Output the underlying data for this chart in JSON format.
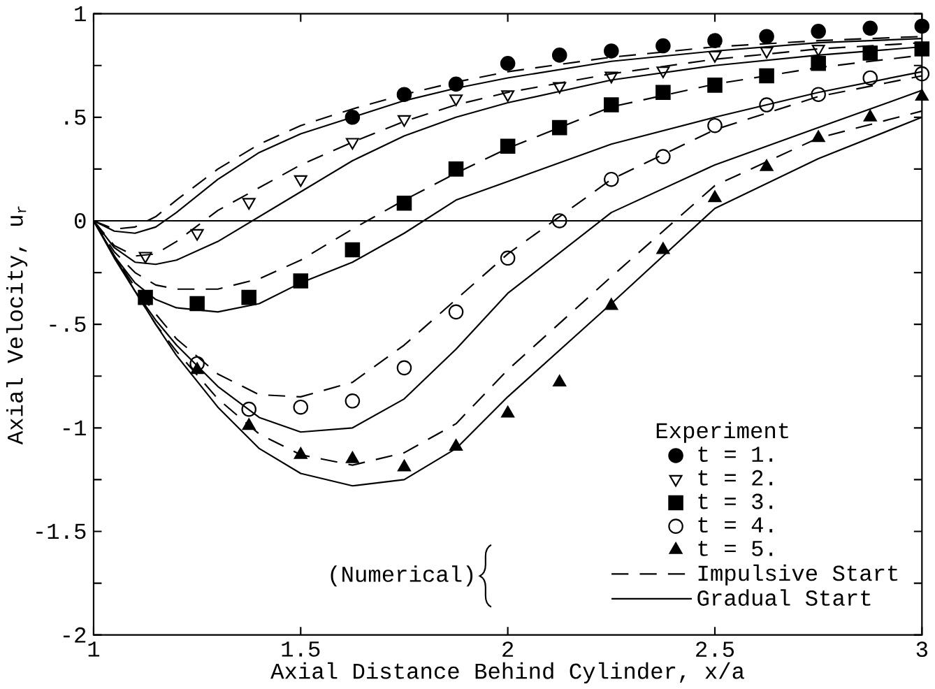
{
  "chart_data": {
    "type": "line",
    "xlabel": "Axial Distance Behind Cylinder, x/a",
    "ylabel": "Axial Velocity, u$_{r}$",
    "legend_title": "Experiment",
    "annotations": [
      "(Numerical)"
    ],
    "xlim": [
      1,
      3
    ],
    "ylim": [
      -2,
      1
    ],
    "xticks": [
      1,
      1.5,
      2,
      2.5,
      3
    ],
    "yticks": [
      -2,
      {
        "value": -1.75,
        "label": null
      },
      {
        "value": -1.5,
        "label": "-1.5"
      },
      {
        "value": -1.25,
        "label": null
      },
      -1,
      {
        "value": -0.75,
        "label": null
      },
      {
        "value": -0.5,
        "label": "-.5"
      },
      {
        "value": -0.25,
        "label": null
      },
      0,
      {
        "value": 0.25,
        "label": null
      },
      {
        "value": 0.5,
        "label": ".5"
      },
      {
        "value": 0.75,
        "label": null
      },
      1
    ],
    "ref_lines": [
      {
        "axis": "y",
        "value": 0,
        "color": "#000000"
      }
    ],
    "legend": "bottom right",
    "series": [
      {
        "type": "scatter",
        "name": "t = 1.",
        "color": "#000000",
        "marker": "circle",
        "x": [
          1.625,
          1.75,
          1.875,
          2.0,
          2.125,
          2.25,
          2.375,
          2.5,
          2.625,
          2.75,
          2.875,
          3.0
        ],
        "values": [
          0.5,
          0.61,
          0.66,
          0.76,
          0.8,
          0.82,
          0.845,
          0.87,
          0.89,
          0.915,
          0.93,
          0.94
        ]
      },
      {
        "type": "scatter",
        "name": "t = 2.",
        "color": "#000000",
        "marker": "triangle-down-open",
        "x": [
          1.125,
          1.25,
          1.375,
          1.5,
          1.625,
          1.75,
          1.875,
          2.0,
          2.125,
          2.25,
          2.375,
          2.5,
          2.625,
          2.75
        ],
        "values": [
          -0.17,
          -0.06,
          0.09,
          0.2,
          0.38,
          0.49,
          0.59,
          0.61,
          0.65,
          0.7,
          0.725,
          0.8,
          0.82,
          0.83
        ]
      },
      {
        "type": "scatter",
        "name": "t = 3.",
        "color": "#000000",
        "marker": "square",
        "x": [
          1.125,
          1.25,
          1.375,
          1.5,
          1.625,
          1.75,
          1.875,
          2.0,
          2.125,
          2.25,
          2.375,
          2.5,
          2.625,
          2.75,
          2.875,
          3.0
        ],
        "values": [
          -0.37,
          -0.4,
          -0.37,
          -0.29,
          -0.14,
          0.085,
          0.25,
          0.36,
          0.45,
          0.56,
          0.62,
          0.655,
          0.7,
          0.76,
          0.81,
          0.83
        ]
      },
      {
        "type": "scatter",
        "name": "t = 4.",
        "color": "#000000",
        "marker": "circle-open",
        "x": [
          1.25,
          1.375,
          1.5,
          1.625,
          1.75,
          1.875,
          2.0,
          2.125,
          2.25,
          2.375,
          2.5,
          2.625,
          2.75,
          2.875,
          3.0
        ],
        "values": [
          -0.69,
          -0.91,
          -0.9,
          -0.87,
          -0.71,
          -0.44,
          -0.18,
          0.0,
          0.2,
          0.31,
          0.46,
          0.56,
          0.61,
          0.69,
          0.71
        ]
      },
      {
        "type": "scatter",
        "name": "t = 5.",
        "color": "#000000",
        "marker": "triangle",
        "x": [
          1.25,
          1.375,
          1.5,
          1.625,
          1.75,
          1.875,
          2.0,
          2.125,
          2.25,
          2.375,
          2.5,
          2.625,
          2.75,
          2.875,
          3.0
        ],
        "values": [
          -0.72,
          -0.99,
          -1.13,
          -1.15,
          -1.19,
          -1.09,
          -0.93,
          -0.78,
          -0.41,
          -0.14,
          0.11,
          0.26,
          0.4,
          0.5,
          0.6
        ]
      },
      {
        "name": "Impulsive Start",
        "color": "#000000",
        "line_style": "dashed",
        "x": [
          1,
          1.05,
          1.1,
          1.15,
          1.2,
          1.3,
          1.4,
          1.5,
          1.625,
          1.75,
          1.875,
          2,
          2.25,
          2.5,
          2.75,
          3
        ],
        "values": [
          0,
          -0.04,
          -0.03,
          0.02,
          0.1,
          0.25,
          0.37,
          0.46,
          0.54,
          0.61,
          0.67,
          0.72,
          0.79,
          0.84,
          0.87,
          0.89
        ]
      },
      {
        "color": "#000000",
        "line_style": "dashed",
        "x": [
          1,
          1.05,
          1.1,
          1.15,
          1.2,
          1.3,
          1.4,
          1.5,
          1.625,
          1.75,
          1.875,
          2,
          2.25,
          2.5,
          2.75,
          3
        ],
        "values": [
          0,
          -0.12,
          -0.17,
          -0.16,
          -0.1,
          0.05,
          0.16,
          0.27,
          0.38,
          0.48,
          0.56,
          0.62,
          0.71,
          0.78,
          0.83,
          0.86
        ]
      },
      {
        "color": "#000000",
        "line_style": "dashed",
        "x": [
          1,
          1.05,
          1.1,
          1.15,
          1.2,
          1.3,
          1.4,
          1.5,
          1.625,
          1.75,
          1.875,
          2,
          2.25,
          2.5,
          2.75,
          3
        ],
        "values": [
          0,
          -0.15,
          -0.25,
          -0.31,
          -0.33,
          -0.33,
          -0.28,
          -0.19,
          -0.04,
          0.1,
          0.23,
          0.35,
          0.55,
          0.66,
          0.74,
          0.8
        ]
      },
      {
        "color": "#000000",
        "line_style": "dashed",
        "x": [
          1,
          1.05,
          1.1,
          1.15,
          1.2,
          1.3,
          1.4,
          1.5,
          1.625,
          1.75,
          1.875,
          2,
          2.25,
          2.5,
          2.75,
          3
        ],
        "values": [
          0,
          -0.17,
          -0.32,
          -0.45,
          -0.57,
          -0.74,
          -0.84,
          -0.85,
          -0.78,
          -0.6,
          -0.38,
          -0.16,
          0.2,
          0.44,
          0.6,
          0.7
        ]
      },
      {
        "color": "#000000",
        "line_style": "dashed",
        "x": [
          1,
          1.05,
          1.1,
          1.15,
          1.2,
          1.3,
          1.4,
          1.5,
          1.625,
          1.75,
          1.875,
          2,
          2.25,
          2.5,
          2.75,
          3
        ],
        "values": [
          0,
          -0.17,
          -0.34,
          -0.5,
          -0.63,
          -0.86,
          -1.03,
          -1.13,
          -1.18,
          -1.12,
          -0.98,
          -0.72,
          -0.27,
          0.17,
          0.4,
          0.53
        ]
      },
      {
        "name": "Gradual Start",
        "color": "#000000",
        "line_style": "solid",
        "x": [
          1,
          1.05,
          1.1,
          1.15,
          1.2,
          1.3,
          1.4,
          1.5,
          1.625,
          1.75,
          1.875,
          2,
          2.25,
          2.5,
          2.75,
          3
        ],
        "values": [
          0,
          -0.05,
          -0.06,
          -0.03,
          0.04,
          0.2,
          0.33,
          0.42,
          0.5,
          0.58,
          0.64,
          0.69,
          0.77,
          0.82,
          0.86,
          0.88
        ]
      },
      {
        "color": "#000000",
        "line_style": "solid",
        "x": [
          1,
          1.05,
          1.1,
          1.15,
          1.2,
          1.3,
          1.4,
          1.5,
          1.625,
          1.75,
          1.875,
          2,
          2.25,
          2.5,
          2.75,
          3
        ],
        "values": [
          0,
          -0.13,
          -0.2,
          -0.21,
          -0.19,
          -0.1,
          0.02,
          0.14,
          0.29,
          0.41,
          0.5,
          0.57,
          0.68,
          0.75,
          0.8,
          0.84
        ]
      },
      {
        "color": "#000000",
        "line_style": "solid",
        "x": [
          1,
          1.05,
          1.1,
          1.15,
          1.2,
          1.3,
          1.4,
          1.5,
          1.625,
          1.75,
          1.875,
          2,
          2.25,
          2.5,
          2.75,
          3
        ],
        "values": [
          0,
          -0.17,
          -0.3,
          -0.38,
          -0.42,
          -0.44,
          -0.4,
          -0.3,
          -0.2,
          -0.06,
          0.1,
          0.19,
          0.37,
          0.5,
          0.62,
          0.72
        ]
      },
      {
        "color": "#000000",
        "line_style": "solid",
        "x": [
          1,
          1.05,
          1.1,
          1.15,
          1.2,
          1.3,
          1.4,
          1.5,
          1.625,
          1.75,
          1.875,
          2,
          2.25,
          2.5,
          2.75,
          3
        ],
        "values": [
          0,
          -0.18,
          -0.34,
          -0.48,
          -0.6,
          -0.8,
          -0.95,
          -1.02,
          -1.0,
          -0.86,
          -0.62,
          -0.35,
          0.04,
          0.27,
          0.45,
          0.63
        ]
      },
      {
        "color": "#000000",
        "line_style": "solid",
        "x": [
          1,
          1.05,
          1.1,
          1.15,
          1.2,
          1.3,
          1.4,
          1.5,
          1.625,
          1.75,
          1.875,
          2,
          2.25,
          2.5,
          2.75,
          3
        ],
        "values": [
          0,
          -0.17,
          -0.34,
          -0.5,
          -0.65,
          -0.9,
          -1.1,
          -1.22,
          -1.28,
          -1.25,
          -1.1,
          -0.85,
          -0.4,
          0.06,
          0.3,
          0.5
        ]
      }
    ]
  }
}
